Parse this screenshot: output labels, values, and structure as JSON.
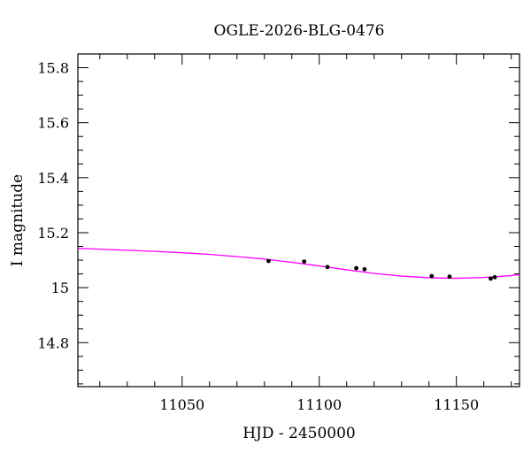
{
  "chart_data": {
    "type": "scatter",
    "title": "OGLE-2026-BLG-0476",
    "xlabel": "HJD - 2450000",
    "ylabel": "I magnitude",
    "xlim": [
      11012,
      11173
    ],
    "ylim": [
      15.85,
      14.64
    ],
    "y_inverted": true,
    "grid": false,
    "x_major_ticks": [
      11050,
      11100,
      11150
    ],
    "x_tick_labels": [
      "11050",
      "11100",
      "11150"
    ],
    "y_major_ticks": [
      14.8,
      15,
      15.2,
      15.4,
      15.6,
      15.8
    ],
    "y_tick_labels": [
      "14.8",
      "15",
      "15.2",
      "15.4",
      "15.6",
      "15.8"
    ],
    "series": [
      {
        "kind": "points",
        "color": "#000000",
        "x": [
          11081.5,
          11094.5,
          11103.0,
          11113.5,
          11116.5,
          11141.0,
          11147.5,
          11162.5,
          11164.0
        ],
        "y": [
          15.097,
          15.095,
          15.075,
          15.071,
          15.067,
          15.042,
          15.04,
          15.033,
          15.038
        ],
        "yerr": [
          0.004,
          0.004,
          0.004,
          0.004,
          0.004,
          0.004,
          0.004,
          0.004,
          0.004
        ]
      },
      {
        "kind": "model",
        "color": "#ff00ff",
        "x": [
          11012,
          11020,
          11030,
          11040,
          11050,
          11060,
          11070,
          11080,
          11090,
          11100,
          11110,
          11120,
          11130,
          11140,
          11150,
          11160,
          11165,
          11170,
          11173
        ],
        "y": [
          15.143,
          15.14,
          15.136,
          15.132,
          15.127,
          15.121,
          15.113,
          15.104,
          15.092,
          15.079,
          15.065,
          15.052,
          15.042,
          15.036,
          15.034,
          15.037,
          15.04,
          15.044,
          15.047
        ]
      }
    ]
  }
}
